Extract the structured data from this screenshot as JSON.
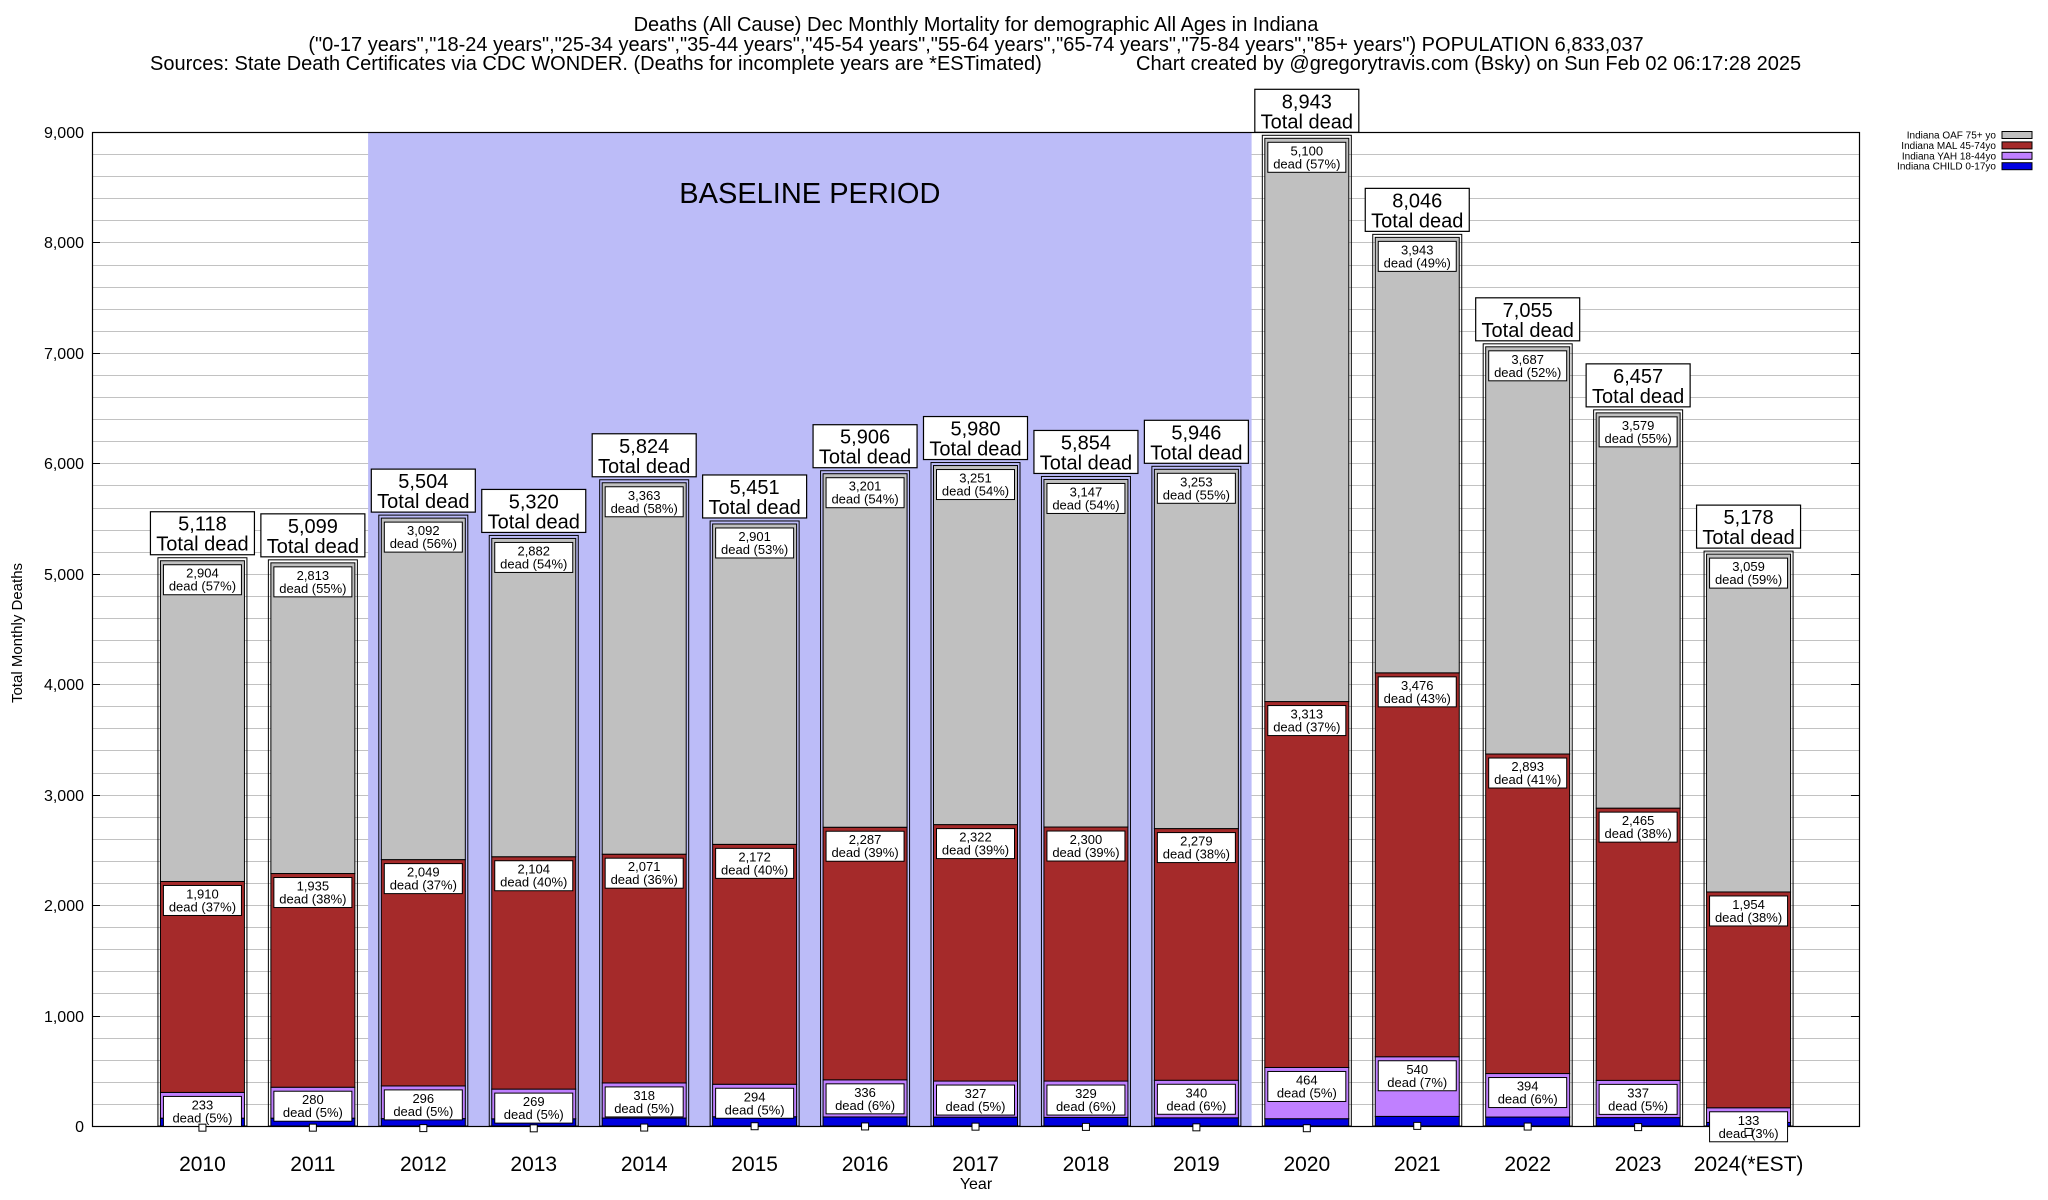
{
  "chart_data": {
    "type": "bar",
    "stacked": true,
    "title": "Deaths (All Cause) Dec Monthly Mortality for demographic All Ages in Indiana",
    "subtitle": "(\"0-17 years\",\"18-24 years\",\"25-34 years\",\"35-44 years\",\"45-54 years\",\"55-64 years\",\"65-74 years\",\"75-84 years\",\"85+ years\") POPULATION 6,833,037",
    "source_note": "Sources: State Death Certificates via CDC WONDER. (Deaths for incomplete years are *ESTimated)",
    "credit": "Chart created by @gregorytravis.com (Bsky) on Sun Feb 02 06:17:28 2025",
    "xlabel": "Year",
    "ylabel": "Total Monthly Deaths",
    "ylim": [
      0,
      9000
    ],
    "yticks": [
      0,
      1000,
      2000,
      3000,
      4000,
      5000,
      6000,
      7000,
      8000,
      9000
    ],
    "grid": true,
    "grid_step": 200,
    "legend_position": "top-right",
    "categories": [
      "2010",
      "2011",
      "2012",
      "2013",
      "2014",
      "2015",
      "2016",
      "2017",
      "2018",
      "2019",
      "2020",
      "2021",
      "2022",
      "2023",
      "2024(*EST)"
    ],
    "totals": [
      5118,
      5099,
      5504,
      5320,
      5824,
      5451,
      5906,
      5980,
      5854,
      5946,
      8943,
      8046,
      7055,
      6457,
      5178
    ],
    "total_label": "Total dead",
    "series": [
      {
        "name": "Indiana OAF 75+ yo",
        "color": "#c0c0c0",
        "values": [
          2904,
          2813,
          3092,
          2882,
          3363,
          2901,
          3201,
          3251,
          3147,
          3253,
          5100,
          3943,
          3687,
          3579,
          3059
        ],
        "labels": [
          "dead (57%)",
          "dead (55%)",
          "dead (56%)",
          "dead (54%)",
          "dead (58%)",
          "dead (53%)",
          "dead (54%)",
          "dead (54%)",
          "dead (54%)",
          "dead (55%)",
          "dead (57%)",
          "dead (49%)",
          "dead (52%)",
          "dead (55%)",
          "dead (59%)"
        ]
      },
      {
        "name": "Indiana MAL 45-74yo",
        "color": "#a52a2a",
        "values": [
          1910,
          1935,
          2049,
          2104,
          2071,
          2172,
          2287,
          2322,
          2300,
          2279,
          3313,
          3476,
          2893,
          2465,
          1954
        ],
        "labels": [
          "dead (37%)",
          "dead (38%)",
          "dead (37%)",
          "dead (40%)",
          "dead (36%)",
          "dead (40%)",
          "dead (39%)",
          "dead (39%)",
          "dead (39%)",
          "dead (38%)",
          "dead (37%)",
          "dead (43%)",
          "dead (41%)",
          "dead (38%)",
          "dead (38%)"
        ]
      },
      {
        "name": "Indiana YAH 18-44yo",
        "color": "#c080ff",
        "values": [
          233,
          280,
          296,
          269,
          318,
          294,
          336,
          327,
          329,
          340,
          464,
          540,
          394,
          337,
          133
        ],
        "labels": [
          "dead (5%)",
          "dead (5%)",
          "dead (5%)",
          "dead (5%)",
          "dead (5%)",
          "dead (5%)",
          "dead (6%)",
          "dead (5%)",
          "dead (6%)",
          "dead (6%)",
          "dead (5%)",
          "dead (7%)",
          "dead (6%)",
          "dead (5%)",
          "dead (3%)"
        ]
      },
      {
        "name": "Indiana CHILD 0-17yo",
        "color": "#0000e0",
        "values": [
          71,
          71,
          67,
          65,
          72,
          84,
          82,
          80,
          78,
          74,
          66,
          87,
          81,
          76,
          32
        ]
      }
    ],
    "annotations": [
      {
        "text": "BASELINE PERIOD",
        "from": "2012",
        "to": "2019",
        "color": "#bcbcf8"
      }
    ]
  }
}
